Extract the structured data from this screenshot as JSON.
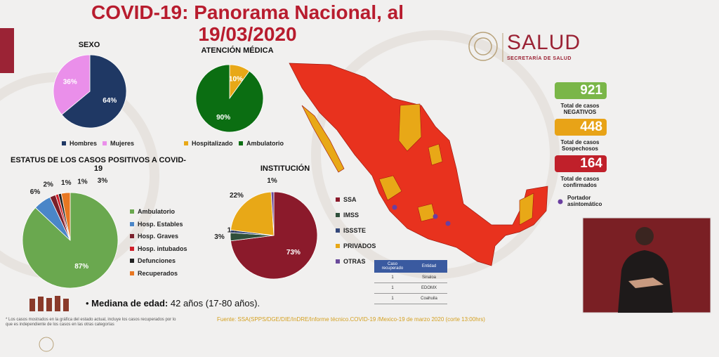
{
  "header": {
    "title": "COVID-19: Panorama Nacional, al 19/03/2020"
  },
  "logo": {
    "name": "SALUD",
    "subtitle": "SECRETARÍA DE SALUD"
  },
  "chart_data": [
    {
      "type": "pie",
      "title": "SEXO",
      "categories": [
        "Hombres",
        "Mujeres"
      ],
      "values": [
        64,
        36
      ],
      "value_labels": [
        "64%",
        "36%"
      ],
      "colors": [
        "#1f3864",
        "#ea8fea"
      ],
      "legend": "bottom"
    },
    {
      "type": "pie",
      "title": "ATENCIÓN MÉDICA",
      "categories": [
        "Hospitalizado",
        "Ambulatorio"
      ],
      "values": [
        10,
        90
      ],
      "value_labels": [
        "10%",
        "90%"
      ],
      "colors": [
        "#e8a817",
        "#0b6e12"
      ],
      "legend": "bottom"
    },
    {
      "type": "pie",
      "title": "ESTATUS DE LOS CASOS POSITIVOS A COVID-19",
      "categories": [
        "Ambulatorio",
        "Hosp. Estables",
        "Hosp. Graves",
        "Hosp. intubados",
        "Defunciones",
        "Recuperados"
      ],
      "values": [
        87,
        6,
        2,
        1,
        1,
        3
      ],
      "value_labels": [
        "87%",
        "6%",
        "2%",
        "1%",
        "1%",
        "3%"
      ],
      "colors": [
        "#6aa84f",
        "#4a86c8",
        "#7b1f2a",
        "#d0202a",
        "#222222",
        "#e87722"
      ],
      "legend": "right"
    },
    {
      "type": "pie",
      "title": "INSTITUCIÓN",
      "categories": [
        "SSA",
        "IMSS",
        "ISSSTE",
        "PRIVADOS",
        "OTRAS"
      ],
      "values": [
        73,
        3,
        1,
        22,
        1
      ],
      "value_labels": [
        "73%",
        "3%",
        "1%",
        "22%",
        "1%"
      ],
      "colors": [
        "#8b1a2b",
        "#2f4f3a",
        "#34487a",
        "#e8a817",
        "#6a4a9a"
      ],
      "legend": "right"
    }
  ],
  "stats": [
    {
      "value": 921,
      "label": "Total de casos NEGATIVOS",
      "color": "#7ab648"
    },
    {
      "value": 448,
      "label": "Total de casos Sospechosos",
      "color": "#e8a317"
    },
    {
      "value": 164,
      "label": "Total de casos confirmados",
      "color": "#c0202a"
    }
  ],
  "map_legend": "Portador asintomático",
  "table": {
    "headers": [
      "Caso recuperado",
      "Entidad"
    ],
    "rows": [
      [
        1,
        "Sinaloa"
      ],
      [
        1,
        "EDOMX"
      ],
      [
        1,
        "Coahuila"
      ]
    ]
  },
  "median": {
    "label": "Mediana de edad:",
    "value": "42 años (17-80 años)."
  },
  "footnote": "* Los casos mostrados en la gráfica del estado actual, incluye los casos recuperados por lo que es independiente de los casos en las otras categorías",
  "source": "Fuente: SSA(SPPS/DGE/DIE/InDRE/Informe técnico.COVID-19 /Mexico-19 de marzo 2020 (corte 13:00hrs)"
}
